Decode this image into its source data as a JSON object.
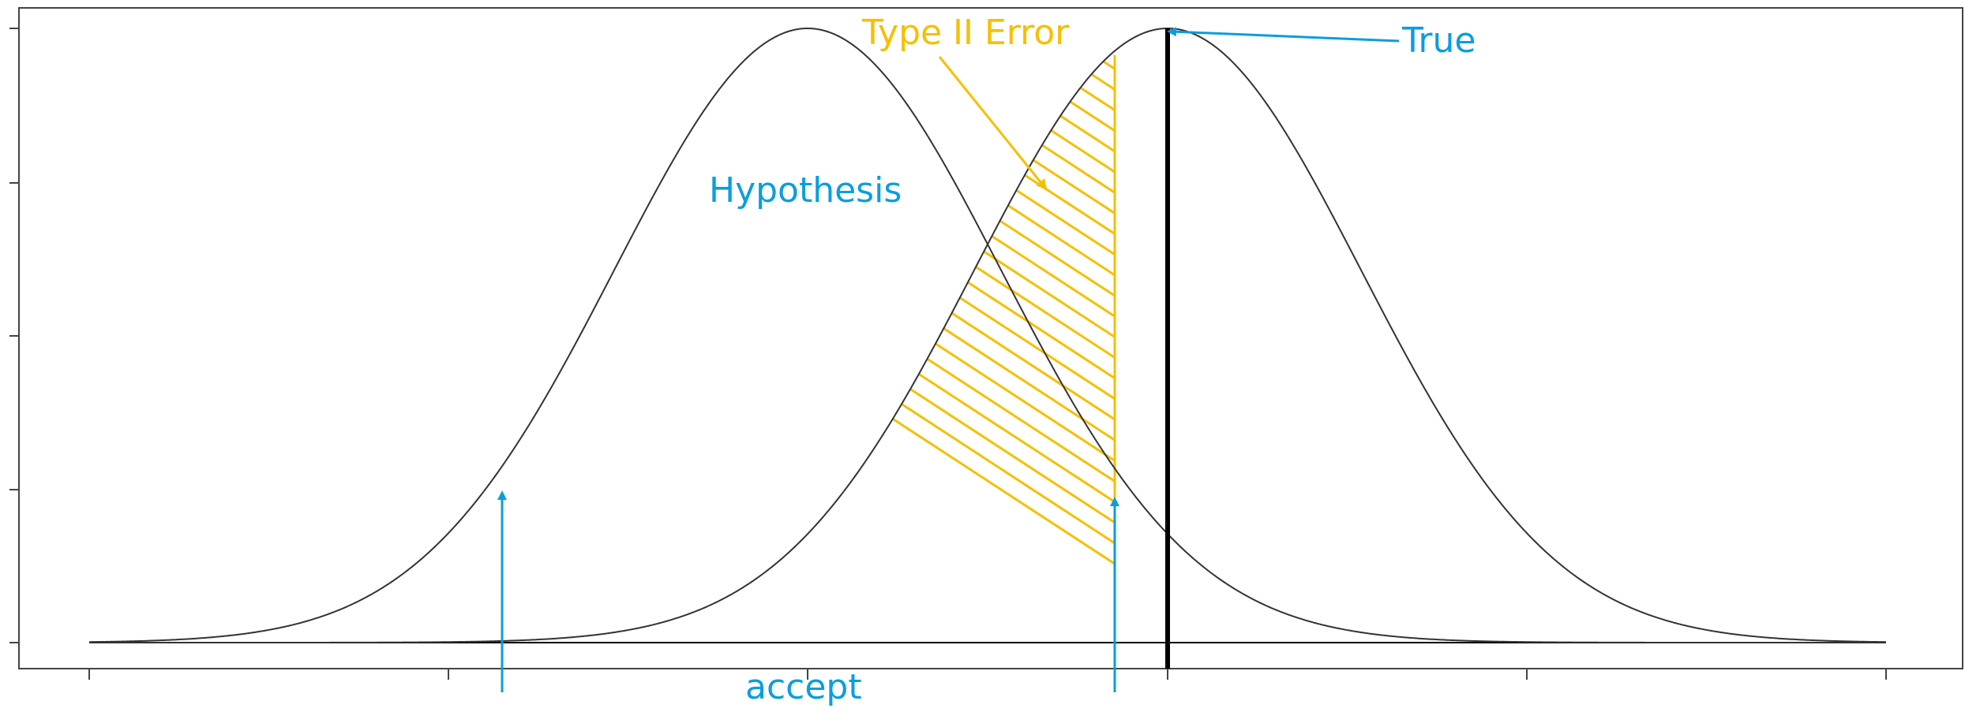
{
  "labels": {
    "hypothesis": "Hypothesis",
    "type_ii_error": "Type II Error",
    "true": "True",
    "accept": "accept"
  },
  "colors": {
    "curve": "#333333",
    "annotation": "#0a9ede",
    "error": "#f5c000",
    "true_line": "#000000",
    "frame": "#444444"
  },
  "icons": {
    "arrow": "arrowhead"
  }
}
